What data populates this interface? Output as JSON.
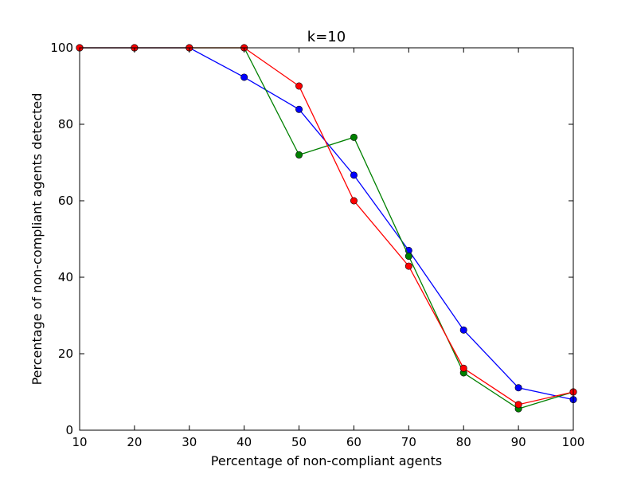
{
  "chart_data": {
    "type": "line",
    "title": "k=10",
    "xlabel": "Percentage of non-compliant agents",
    "ylabel": "Percentage of non-compliant agents detected",
    "xlim": [
      10,
      100
    ],
    "ylim": [
      0,
      100
    ],
    "xticks": [
      10,
      20,
      30,
      40,
      50,
      60,
      70,
      80,
      90,
      100
    ],
    "yticks": [
      0,
      20,
      40,
      60,
      80,
      100
    ],
    "grid": false,
    "x": [
      10,
      20,
      30,
      40,
      50,
      60,
      70,
      80,
      90,
      100
    ],
    "series": [
      {
        "color": "#0000ff",
        "values": [
          100,
          100,
          100,
          92.3,
          83.9,
          66.7,
          47.0,
          26.2,
          11.1,
          8.0
        ]
      },
      {
        "color": "#008000",
        "values": [
          100,
          100,
          100,
          100,
          72.0,
          76.6,
          45.5,
          15.0,
          5.6,
          10.0
        ]
      },
      {
        "color": "#ff0000",
        "values": [
          100,
          100,
          100,
          100,
          90.0,
          60.0,
          42.9,
          16.2,
          6.7,
          10.0
        ]
      }
    ]
  }
}
